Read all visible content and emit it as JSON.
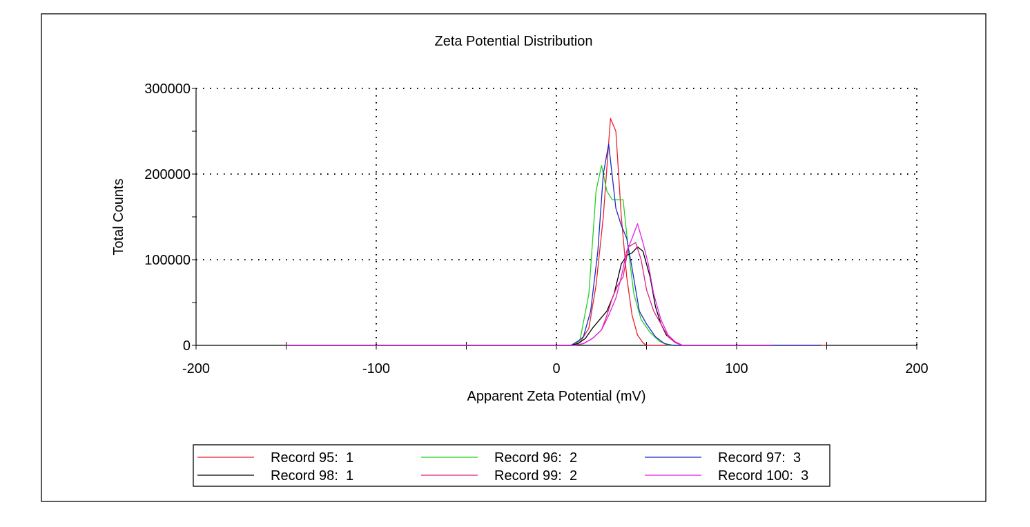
{
  "chart_data": {
    "type": "line",
    "title": "Zeta Potential Distribution",
    "xlabel": "Apparent Zeta Potential (mV)",
    "ylabel": "Total Counts",
    "xlim": [
      -200,
      200
    ],
    "ylim": [
      0,
      300000
    ],
    "x_ticks": [
      -200,
      -100,
      0,
      100,
      200
    ],
    "x_tick_labels": [
      "-200",
      "-100",
      "0",
      "100",
      "200"
    ],
    "y_ticks": [
      0,
      100000,
      200000,
      300000
    ],
    "y_tick_labels": [
      "0",
      "100000",
      "200000",
      "300000"
    ],
    "grid": true,
    "legend_position": "bottom",
    "series": [
      {
        "name": "Record 95:  1",
        "color": "#e8202a",
        "x": [
          -150,
          0,
          8,
          13,
          18,
          22,
          26,
          30,
          33,
          36,
          39,
          42,
          45,
          48,
          50,
          150
        ],
        "y": [
          0,
          0,
          0,
          3000,
          20000,
          70000,
          150000,
          265000,
          250000,
          150000,
          80000,
          35000,
          12000,
          3000,
          0,
          0
        ]
      },
      {
        "name": "Record 96:  2",
        "color": "#22d022",
        "x": [
          -150,
          0,
          8,
          13,
          18,
          22,
          25,
          28,
          31,
          34,
          37,
          40,
          43,
          47,
          52,
          57,
          62,
          120
        ],
        "y": [
          0,
          0,
          0,
          5000,
          60000,
          180000,
          210000,
          180000,
          170000,
          170000,
          170000,
          110000,
          60000,
          30000,
          15000,
          5000,
          0,
          0
        ]
      },
      {
        "name": "Record 97:  3",
        "color": "#1c28c8",
        "x": [
          -150,
          0,
          8,
          12,
          15,
          19,
          23,
          26,
          29,
          33,
          36,
          39,
          42,
          46,
          50,
          55,
          60,
          65,
          147
        ],
        "y": [
          0,
          0,
          0,
          5000,
          10000,
          40000,
          110000,
          200000,
          235000,
          160000,
          140000,
          125000,
          90000,
          40000,
          25000,
          10000,
          2000,
          0,
          0
        ]
      },
      {
        "name": "Record 98:  1",
        "color": "#000000",
        "x": [
          -150,
          0,
          8,
          12,
          16,
          20,
          24,
          28,
          32,
          36,
          39,
          42,
          45,
          48,
          52,
          55,
          58,
          61,
          65,
          70,
          120
        ],
        "y": [
          0,
          0,
          0,
          2000,
          8000,
          20000,
          30000,
          40000,
          60000,
          95000,
          105000,
          108000,
          115000,
          110000,
          80000,
          45000,
          25000,
          12000,
          5000,
          0,
          0
        ]
      },
      {
        "name": "Record 99:  2",
        "color": "#e0207c",
        "x": [
          -150,
          0,
          10,
          15,
          20,
          25,
          28,
          31,
          34,
          37,
          40,
          44,
          47,
          50,
          54,
          58,
          62,
          66,
          70,
          120
        ],
        "y": [
          0,
          0,
          0,
          2000,
          8000,
          18000,
          35000,
          55000,
          70000,
          80000,
          115000,
          120000,
          100000,
          65000,
          40000,
          25000,
          10000,
          3000,
          0,
          0
        ]
      },
      {
        "name": "Record 100:  3",
        "color": "#e020e0",
        "x": [
          -150,
          0,
          10,
          15,
          20,
          25,
          29,
          33,
          36,
          39,
          42,
          45,
          48,
          51,
          54,
          58,
          62,
          66,
          70,
          120
        ],
        "y": [
          0,
          0,
          0,
          2000,
          8000,
          18000,
          35000,
          55000,
          80000,
          110000,
          125000,
          142000,
          120000,
          95000,
          60000,
          30000,
          12000,
          4000,
          0,
          0
        ]
      }
    ]
  }
}
